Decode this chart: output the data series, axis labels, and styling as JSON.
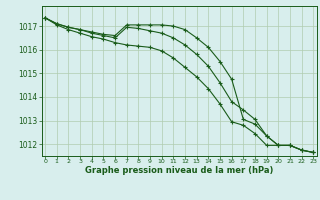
{
  "x": [
    0,
    1,
    2,
    3,
    4,
    5,
    6,
    7,
    8,
    9,
    10,
    11,
    12,
    13,
    14,
    15,
    16,
    17,
    18,
    19,
    20,
    21,
    22,
    23
  ],
  "line1": [
    1017.35,
    1017.1,
    1016.95,
    1016.85,
    1016.75,
    1016.65,
    1016.6,
    1017.05,
    1017.05,
    1017.05,
    1017.05,
    1017.0,
    1016.85,
    1016.5,
    1016.1,
    1015.5,
    1014.75,
    1013.05,
    1012.85,
    1012.35,
    1011.95,
    1011.95,
    1011.75,
    1011.65
  ],
  "line2": [
    1017.35,
    1017.05,
    1016.85,
    1016.7,
    1016.55,
    1016.45,
    1016.3,
    1016.2,
    1016.15,
    1016.1,
    1015.95,
    1015.65,
    1015.25,
    1014.85,
    1014.35,
    1013.7,
    1012.95,
    1012.8,
    1012.45,
    1011.95,
    1011.95,
    1011.95,
    1011.75,
    1011.65
  ],
  "line3": [
    1017.35,
    1017.1,
    1016.95,
    1016.85,
    1016.7,
    1016.6,
    1016.5,
    1016.95,
    1016.9,
    1016.8,
    1016.7,
    1016.5,
    1016.2,
    1015.8,
    1015.3,
    1014.6,
    1013.8,
    1013.45,
    1013.05,
    1012.35,
    1011.95,
    1011.95,
    1011.75,
    1011.65
  ],
  "bg_color": "#d8eeed",
  "grid_color": "#b0ccb0",
  "line_color": "#1a5c1a",
  "xlabel": "Graphe pression niveau de la mer (hPa)",
  "ylim_min": 1011.5,
  "ylim_max": 1017.85,
  "yticks": [
    1012,
    1013,
    1014,
    1015,
    1016,
    1017
  ],
  "xticks": [
    0,
    1,
    2,
    3,
    4,
    5,
    6,
    7,
    8,
    9,
    10,
    11,
    12,
    13,
    14,
    15,
    16,
    17,
    18,
    19,
    20,
    21,
    22,
    23
  ]
}
